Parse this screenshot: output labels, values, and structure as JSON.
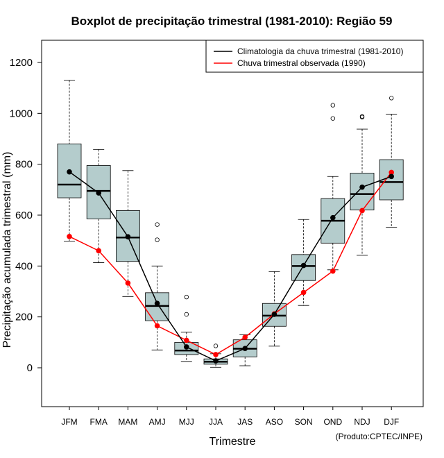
{
  "chart_data": {
    "type": "boxplot",
    "title": "Boxplot de precipitação trimestral (1981-2010): Região 59",
    "xlabel": "Trimestre",
    "ylabel": "Precipitação acumulada trimestral (mm)",
    "credit": "(Produto:CPTEC/INPE)",
    "ylim": [
      -150,
      1280
    ],
    "yticks": [
      0,
      200,
      400,
      600,
      800,
      1000,
      1200
    ],
    "categories": [
      "JFM",
      "FMA",
      "MAM",
      "AMJ",
      "MJJ",
      "JJA",
      "JAS",
      "ASO",
      "SON",
      "OND",
      "NDJ",
      "DJF"
    ],
    "boxes": [
      {
        "min": 498,
        "q1": 668,
        "median": 720,
        "q3": 880,
        "max": 1130,
        "outliers": []
      },
      {
        "min": 413,
        "q1": 585,
        "median": 695,
        "q3": 795,
        "max": 858,
        "outliers": []
      },
      {
        "min": 280,
        "q1": 418,
        "median": 512,
        "q3": 618,
        "max": 775,
        "outliers": []
      },
      {
        "min": 70,
        "q1": 185,
        "median": 243,
        "q3": 295,
        "max": 400,
        "outliers": [
          503,
          563
        ]
      },
      {
        "min": 25,
        "q1": 52,
        "median": 68,
        "q3": 100,
        "max": 140,
        "outliers": [
          210,
          278
        ]
      },
      {
        "min": 2,
        "q1": 14,
        "median": 24,
        "q3": 35,
        "max": 55,
        "outliers": [
          86
        ]
      },
      {
        "min": 8,
        "q1": 43,
        "median": 75,
        "q3": 110,
        "max": 130,
        "outliers": []
      },
      {
        "min": 85,
        "q1": 163,
        "median": 205,
        "q3": 253,
        "max": 378,
        "outliers": []
      },
      {
        "min": 245,
        "q1": 343,
        "median": 400,
        "q3": 445,
        "max": 583,
        "outliers": []
      },
      {
        "min": 385,
        "q1": 490,
        "median": 578,
        "q3": 665,
        "max": 752,
        "outliers": [
          980,
          1032
        ]
      },
      {
        "min": 442,
        "q1": 620,
        "median": 683,
        "q3": 765,
        "max": 938,
        "outliers": [
          985,
          988
        ]
      },
      {
        "min": 552,
        "q1": 660,
        "median": 730,
        "q3": 818,
        "max": 997,
        "outliers": [
          1060
        ]
      }
    ],
    "series": [
      {
        "name": "Climatologia da chuva trimestral (1981-2010)",
        "color": "#000000",
        "values": [
          770,
          687,
          515,
          253,
          82,
          27,
          76,
          210,
          402,
          590,
          710,
          752
        ]
      },
      {
        "name": "Chuva trimestral observada (1990)",
        "color": "#ff0000",
        "values": [
          516,
          460,
          333,
          165,
          108,
          52,
          120,
          212,
          296,
          380,
          618,
          768
        ]
      }
    ],
    "box_color": "#b4cccc",
    "legend_position": "top-right"
  }
}
